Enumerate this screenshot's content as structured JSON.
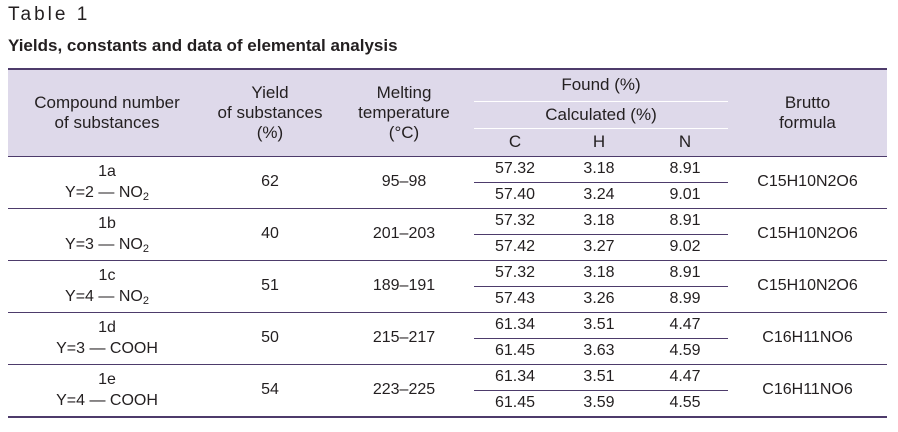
{
  "table_label": "Table 1",
  "table_title": "Yields, constants and data of elemental analysis",
  "headers": {
    "compound": "Compound number\nof substances",
    "yield": "Yield\nof substances\n(%)",
    "melting": "Melting\ntemperature\n(°C)",
    "found": "Found (%)",
    "calculated": "Calculated (%)",
    "c": "C",
    "h": "H",
    "n": "N",
    "brutto": "Brutto\nformula"
  },
  "rows": [
    {
      "compound": "1a",
      "y_prefix": "Y=2 — NO",
      "y_sub": "2",
      "yield": "62",
      "melting": "95–98",
      "found": {
        "c": "57.32",
        "h": "3.18",
        "n": "8.91"
      },
      "calculated": {
        "c": "57.40",
        "h": "3.24",
        "n": "9.01"
      },
      "formula": "C15H10N2O6"
    },
    {
      "compound": "1b",
      "y_prefix": "Y=3 — NO",
      "y_sub": "2",
      "yield": "40",
      "melting": "201–203",
      "found": {
        "c": "57.32",
        "h": "3.18",
        "n": "8.91"
      },
      "calculated": {
        "c": "57.42",
        "h": "3.27",
        "n": "9.02"
      },
      "formula": "C15H10N2O6"
    },
    {
      "compound": "1c",
      "y_prefix": "Y=4 — NO",
      "y_sub": "2",
      "yield": "51",
      "melting": "189–191",
      "found": {
        "c": "57.32",
        "h": "3.18",
        "n": "8.91"
      },
      "calculated": {
        "c": "57.43",
        "h": "3.26",
        "n": "8.99"
      },
      "formula": "C15H10N2O6"
    },
    {
      "compound": "1d",
      "y_prefix": "Y=3 — COOH",
      "y_sub": "",
      "yield": "50",
      "melting": "215–217",
      "found": {
        "c": "61.34",
        "h": "3.51",
        "n": "4.47"
      },
      "calculated": {
        "c": "61.45",
        "h": "3.63",
        "n": "4.59"
      },
      "formula": "C16H11NO6"
    },
    {
      "compound": "1e",
      "y_prefix": "Y=4 — COOH",
      "y_sub": "",
      "yield": "54",
      "melting": "223–225",
      "found": {
        "c": "61.34",
        "h": "3.51",
        "n": "4.47"
      },
      "calculated": {
        "c": "61.45",
        "h": "3.59",
        "n": "4.55"
      },
      "formula": "C16H11NO6"
    }
  ]
}
